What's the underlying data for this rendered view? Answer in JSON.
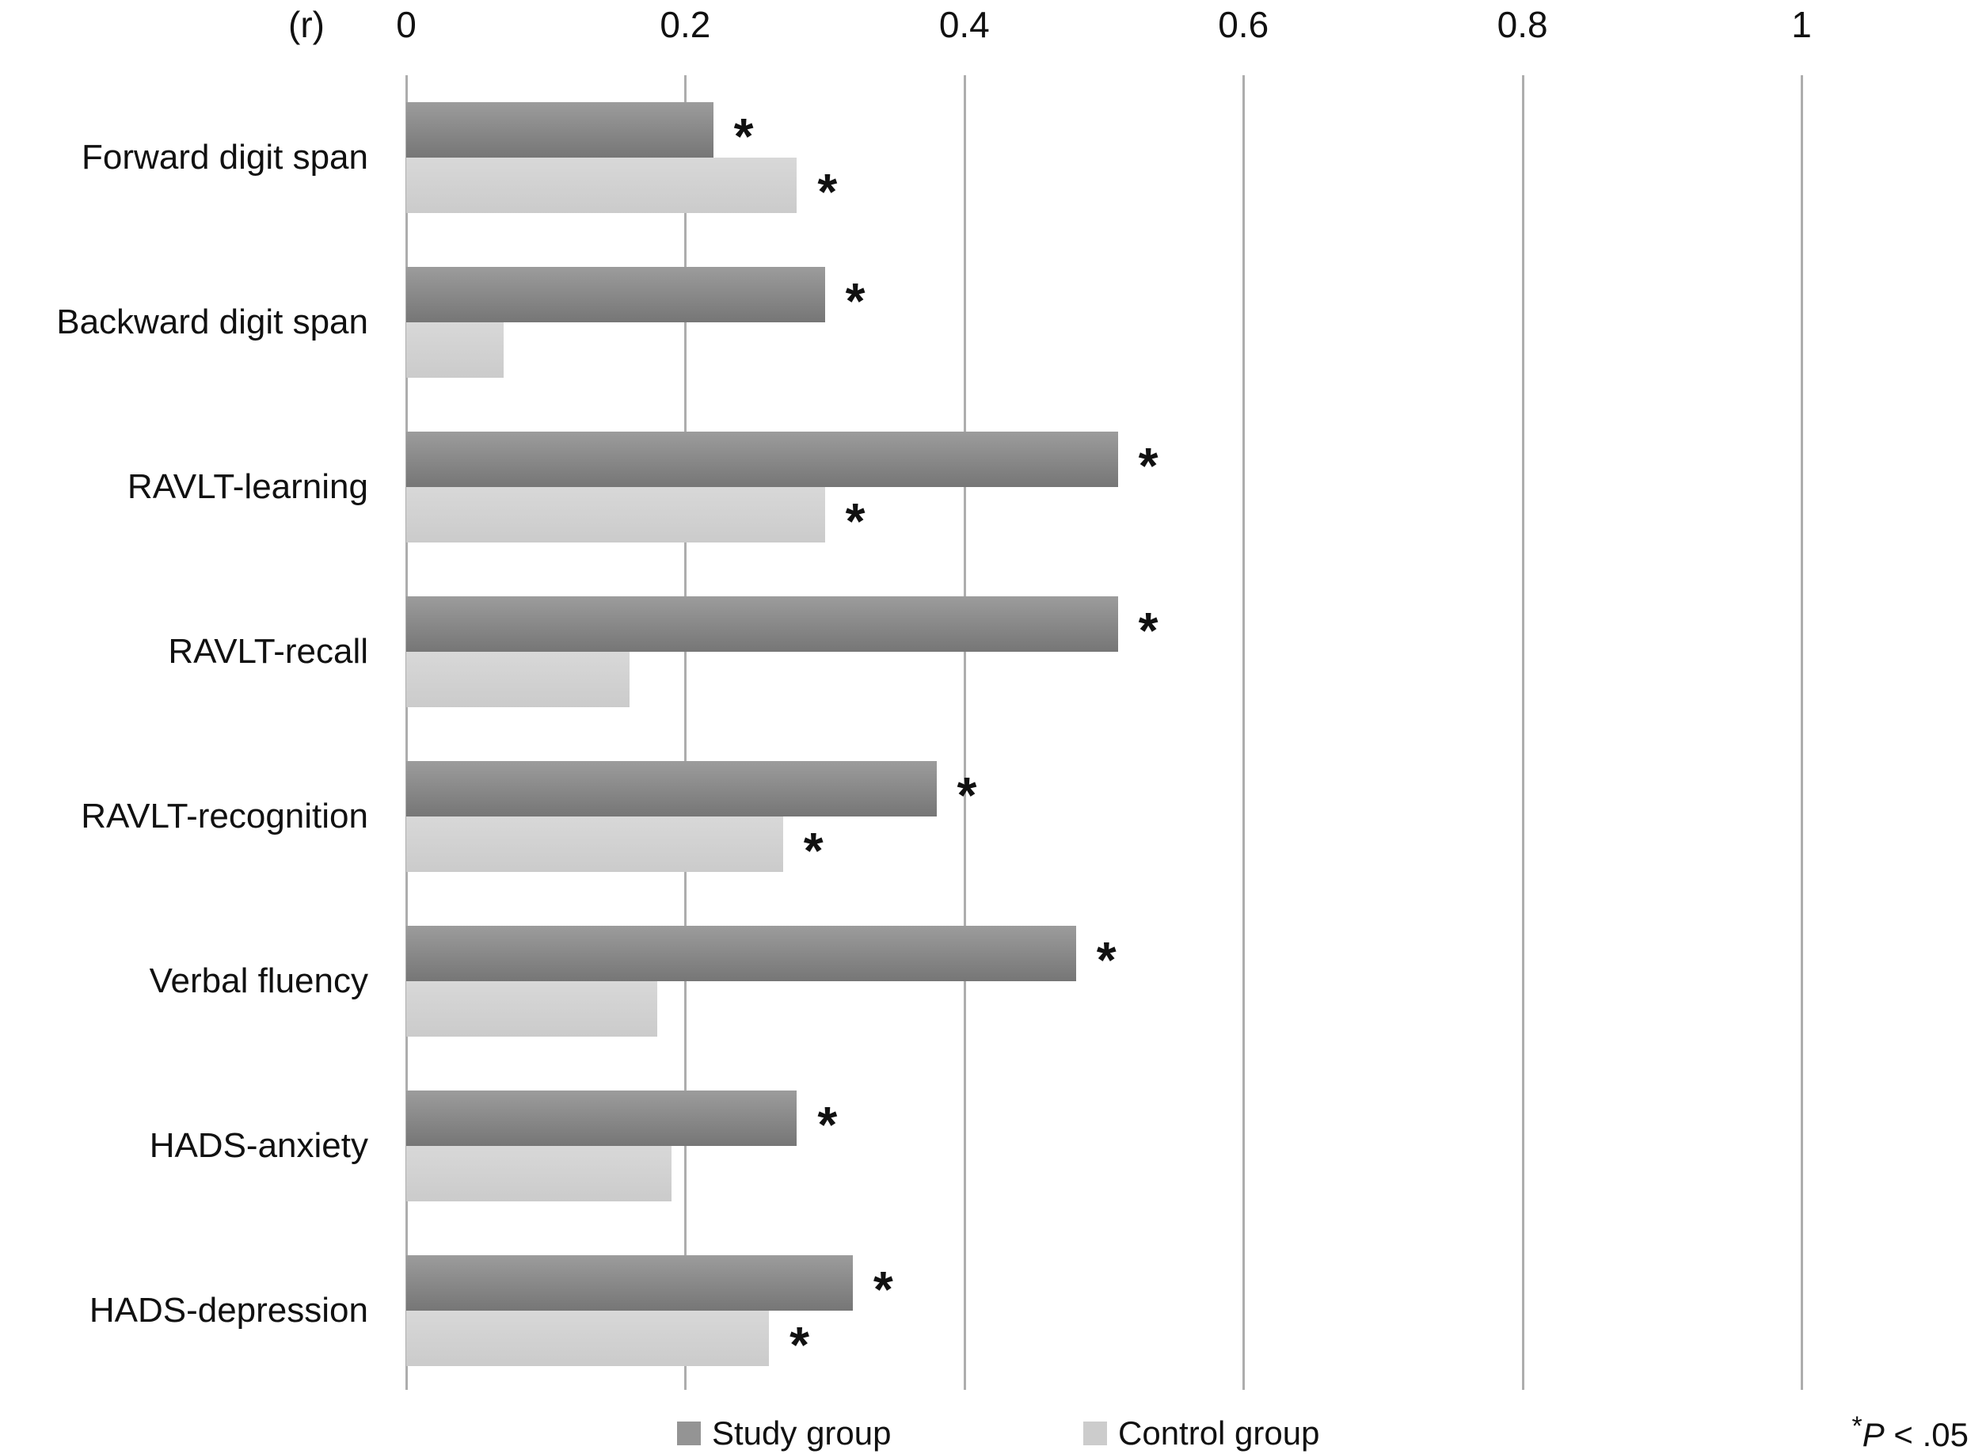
{
  "axis": {
    "unit_label": "(r)",
    "ticks": [
      {
        "label": "0",
        "value": 0
      },
      {
        "label": "0.2",
        "value": 0.2
      },
      {
        "label": "0.4",
        "value": 0.4
      },
      {
        "label": "0.6",
        "value": 0.6
      },
      {
        "label": "0.8",
        "value": 0.8
      },
      {
        "label": "1",
        "value": 1
      }
    ]
  },
  "chart_data": {
    "type": "bar",
    "orientation": "horizontal",
    "xlabel": "(r)",
    "xlim": [
      0,
      1
    ],
    "x_ticks": [
      0,
      0.2,
      0.4,
      0.6,
      0.8,
      1
    ],
    "grid": true,
    "legend_position": "bottom",
    "categories": [
      "Forward digit span",
      "Backward digit span",
      "RAVLT-learning",
      "RAVLT-recall",
      "RAVLT-recognition",
      "Verbal fluency",
      "HADS-anxiety",
      "HADS-depression"
    ],
    "series": [
      {
        "name": "Study group",
        "color": "#949494",
        "values": [
          0.22,
          0.3,
          0.51,
          0.51,
          0.38,
          0.48,
          0.28,
          0.32
        ],
        "significant": [
          true,
          true,
          true,
          true,
          true,
          true,
          true,
          true
        ]
      },
      {
        "name": "Control group",
        "color": "#cccccc",
        "values": [
          0.28,
          0.07,
          0.3,
          0.16,
          0.27,
          0.18,
          0.19,
          0.26
        ],
        "significant": [
          true,
          false,
          true,
          false,
          true,
          false,
          false,
          true
        ]
      }
    ],
    "significance_marker": "*"
  },
  "legend": {
    "items": [
      {
        "label": "Study group"
      },
      {
        "label": "Control group"
      }
    ]
  },
  "footnote": {
    "star": "*",
    "p": "P",
    "rest": " < .05"
  }
}
